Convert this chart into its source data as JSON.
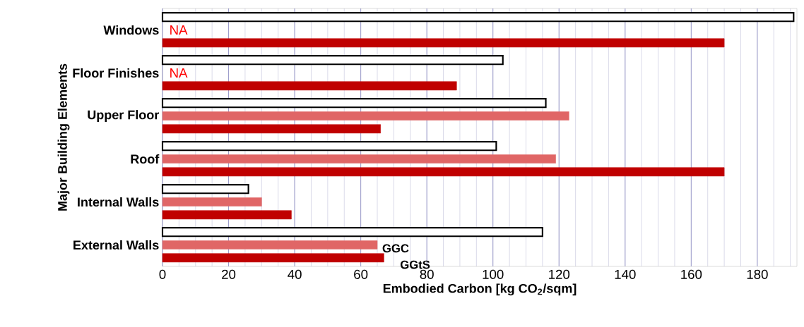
{
  "chart_data": {
    "type": "bar",
    "orientation": "horizontal",
    "xlabel": "Embodied Carbon [kg CO$_{2}$/sqm]",
    "ylabel": "Major Building Elements",
    "categories": [
      "Windows",
      "Floor Finishes",
      "Upper Floor",
      "Roof",
      "Internal Walls",
      "External Walls"
    ],
    "series": [
      {
        "color": "#ffffff",
        "values": [
          191,
          103,
          116,
          101,
          26,
          115
        ]
      },
      {
        "name": "GGC",
        "color": "#e06666",
        "values": [
          null,
          null,
          123,
          119,
          30,
          65
        ]
      },
      {
        "name": "GGtS",
        "color": "#c00000",
        "values": [
          170,
          89,
          66,
          170,
          39,
          67
        ]
      }
    ],
    "xlim": [
      0,
      192
    ],
    "xticks": [
      0,
      {
        "value": 5,
        "label": null
      },
      {
        "value": 10,
        "label": null
      },
      {
        "value": 15,
        "label": null
      },
      20,
      {
        "value": 25,
        "label": null
      },
      {
        "value": 30,
        "label": null
      },
      {
        "value": 35,
        "label": null
      },
      40,
      {
        "value": 45,
        "label": null
      },
      {
        "value": 50,
        "label": null
      },
      {
        "value": 55,
        "label": null
      },
      60,
      {
        "value": 65,
        "label": null
      },
      {
        "value": 70,
        "label": null
      },
      {
        "value": 75,
        "label": null
      },
      80,
      {
        "value": 85,
        "label": null
      },
      {
        "value": 90,
        "label": null
      },
      {
        "value": 95,
        "label": null
      },
      100,
      {
        "value": 105,
        "label": null
      },
      {
        "value": 110,
        "label": null
      },
      {
        "value": 115,
        "label": null
      },
      120,
      {
        "value": 125,
        "label": null
      },
      {
        "value": 130,
        "label": null
      },
      {
        "value": 135,
        "label": null
      },
      140,
      {
        "value": 145,
        "label": null
      },
      {
        "value": 150,
        "label": null
      },
      {
        "value": 155,
        "label": null
      },
      160,
      {
        "value": 165,
        "label": null
      },
      {
        "value": 170,
        "label": null
      },
      {
        "value": 175,
        "label": null
      },
      180,
      {
        "value": 185,
        "label": null
      },
      {
        "value": 190,
        "label": null
      }
    ],
    "grid": "x",
    "legend": "bottom",
    "annotations": [
      "NA",
      "NA"
    ]
  }
}
